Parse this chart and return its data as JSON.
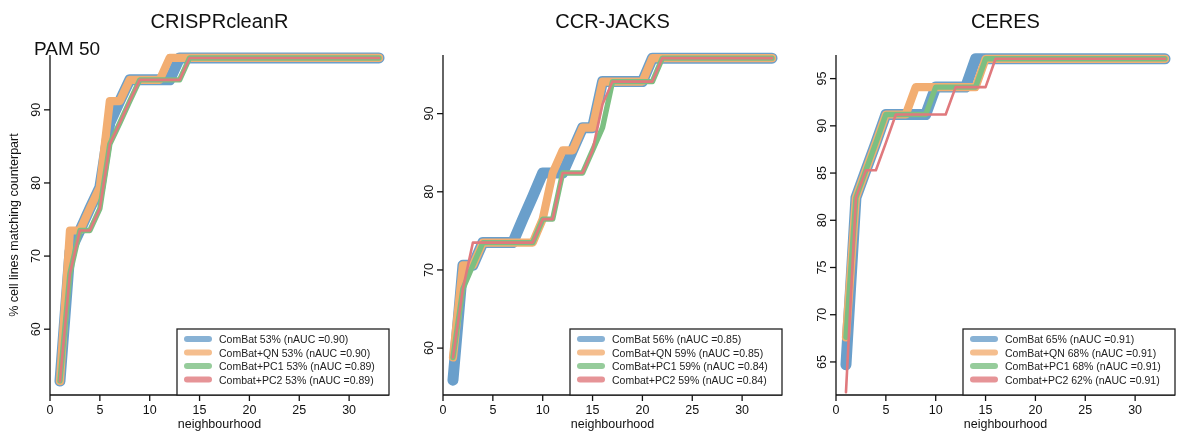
{
  "chart_data": [
    {
      "type": "line",
      "title": "CRISPRcleanR",
      "annotations": [
        "PAM 50"
      ],
      "xlabel": "neighbourhood",
      "ylabel": "% cell lines matching counterpart",
      "x": [
        1,
        2,
        3,
        4,
        5,
        6,
        7,
        8,
        9,
        10,
        11,
        12,
        13,
        14,
        15,
        16,
        17,
        18,
        19,
        20,
        21,
        22,
        23,
        24,
        25,
        26,
        27,
        28,
        29,
        30,
        31,
        32,
        33
      ],
      "xlim": [
        0,
        34
      ],
      "xticks": [
        0,
        5,
        10,
        15,
        20,
        25,
        30
      ],
      "ylim": [
        51,
        97.5
      ],
      "yticks": [
        60,
        70,
        80,
        90
      ],
      "legend": "bottom right",
      "grid": false,
      "series": [
        {
          "name": "ComBat 53% (nAUC =0.90)",
          "color": "#6a9fcb",
          "values": [
            52.9,
            70.6,
            73.5,
            76.5,
            79.4,
            88.2,
            91.2,
            94.1,
            94.1,
            94.1,
            94.1,
            94.1,
            97.1,
            97.1,
            97.1,
            97.1,
            97.1,
            97.1,
            97.1,
            97.1,
            97.1,
            97.1,
            97.1,
            97.1,
            97.1,
            97.1,
            97.1,
            97.1,
            97.1,
            97.1,
            97.1,
            97.1,
            97.1
          ]
        },
        {
          "name": "ComBat+QN 53% (nAUC =0.90)",
          "color": "#f2ae72",
          "values": [
            52.9,
            73.5,
            73.5,
            76.5,
            79.4,
            91.2,
            91.2,
            94.1,
            94.1,
            94.1,
            94.1,
            97.1,
            97.1,
            97.1,
            97.1,
            97.1,
            97.1,
            97.1,
            97.1,
            97.1,
            97.1,
            97.1,
            97.1,
            97.1,
            97.1,
            97.1,
            97.1,
            97.1,
            97.1,
            97.1,
            97.1,
            97.1,
            97.1
          ]
        },
        {
          "name": "ComBat+PC1 53% (nAUC =0.89)",
          "color": "#7cbf82",
          "values": [
            52.9,
            67.6,
            73.5,
            73.5,
            76.5,
            85.3,
            88.2,
            91.2,
            94.1,
            94.1,
            94.1,
            94.1,
            94.1,
            97.1,
            97.1,
            97.1,
            97.1,
            97.1,
            97.1,
            97.1,
            97.1,
            97.1,
            97.1,
            97.1,
            97.1,
            97.1,
            97.1,
            97.1,
            97.1,
            97.1,
            97.1,
            97.1,
            97.1
          ]
        },
        {
          "name": "Combat+PC2 53% (nAUC =0.89)",
          "color": "#e0797d",
          "values": [
            52.9,
            67.6,
            73.5,
            73.5,
            76.5,
            85.3,
            88.2,
            91.2,
            94.1,
            94.1,
            94.1,
            94.1,
            94.1,
            97.1,
            97.1,
            97.1,
            97.1,
            97.1,
            97.1,
            97.1,
            97.1,
            97.1,
            97.1,
            97.1,
            97.1,
            97.1,
            97.1,
            97.1,
            97.1,
            97.1,
            97.1,
            97.1,
            97.1
          ]
        }
      ]
    },
    {
      "type": "line",
      "title": "CCR-JACKS",
      "xlabel": "neighbourhood",
      "x": [
        1,
        2,
        3,
        4,
        5,
        6,
        7,
        8,
        9,
        10,
        11,
        12,
        13,
        14,
        15,
        16,
        17,
        18,
        19,
        20,
        21,
        22,
        23,
        24,
        25,
        26,
        27,
        28,
        29,
        30,
        31,
        32,
        33
      ],
      "xlim": [
        0,
        34
      ],
      "xticks": [
        0,
        5,
        10,
        15,
        20,
        25,
        30
      ],
      "ylim": [
        54,
        97.5
      ],
      "yticks": [
        60,
        70,
        80,
        90
      ],
      "legend": "bottom right",
      "grid": false,
      "series": [
        {
          "name": "ComBat 56% (nAUC =0.85)",
          "color": "#6a9fcb",
          "values": [
            55.9,
            70.6,
            70.6,
            73.5,
            73.5,
            73.5,
            73.5,
            76.5,
            79.4,
            82.4,
            82.4,
            82.4,
            85.3,
            88.2,
            88.2,
            94.1,
            94.1,
            94.1,
            94.1,
            94.1,
            97.1,
            97.1,
            97.1,
            97.1,
            97.1,
            97.1,
            97.1,
            97.1,
            97.1,
            97.1,
            97.1,
            97.1,
            97.1
          ]
        },
        {
          "name": "ComBat+QN 59% (nAUC =0.85)",
          "color": "#f2ae72",
          "values": [
            58.8,
            70.6,
            70.6,
            73.5,
            73.5,
            73.5,
            73.5,
            73.5,
            73.5,
            76.5,
            82.4,
            85.3,
            85.3,
            88.2,
            88.2,
            94.1,
            94.1,
            94.1,
            94.1,
            94.1,
            97.1,
            97.1,
            97.1,
            97.1,
            97.1,
            97.1,
            97.1,
            97.1,
            97.1,
            97.1,
            97.1,
            97.1,
            97.1
          ]
        },
        {
          "name": "ComBat+PC1 59% (nAUC =0.84)",
          "color": "#7cbf82",
          "values": [
            58.8,
            67.6,
            70.6,
            73.5,
            73.5,
            73.5,
            73.5,
            73.5,
            73.5,
            76.5,
            76.5,
            82.4,
            82.4,
            82.4,
            85.3,
            88.2,
            94.1,
            94.1,
            94.1,
            94.1,
            94.1,
            97.1,
            97.1,
            97.1,
            97.1,
            97.1,
            97.1,
            97.1,
            97.1,
            97.1,
            97.1,
            97.1,
            97.1
          ]
        },
        {
          "name": "Combat+PC2 59% (nAUC =0.84)",
          "color": "#e0797d",
          "values": [
            58.8,
            67.6,
            73.5,
            73.5,
            73.5,
            73.5,
            73.5,
            73.5,
            73.5,
            76.5,
            76.5,
            82.4,
            82.4,
            82.4,
            85.3,
            91.2,
            94.1,
            94.1,
            94.1,
            94.1,
            94.1,
            97.1,
            97.1,
            97.1,
            97.1,
            97.1,
            97.1,
            97.1,
            97.1,
            97.1,
            97.1,
            97.1,
            97.1
          ]
        }
      ]
    },
    {
      "type": "line",
      "title": "CERES",
      "xlabel": "neighbourhood",
      "x": [
        1,
        2,
        3,
        4,
        5,
        6,
        7,
        8,
        9,
        10,
        11,
        12,
        13,
        14,
        15,
        16,
        17,
        18,
        19,
        20,
        21,
        22,
        23,
        24,
        25,
        26,
        27,
        28,
        29,
        30,
        31,
        32,
        33
      ],
      "xlim": [
        0,
        34
      ],
      "xticks": [
        0,
        5,
        10,
        15,
        20,
        25,
        30
      ],
      "ylim": [
        61.5,
        97.5
      ],
      "yticks": [
        65,
        70,
        75,
        80,
        85,
        90,
        95
      ],
      "legend": "bottom right",
      "grid": false,
      "series": [
        {
          "name": "ComBat 65% (nAUC =0.91)",
          "color": "#6a9fcb",
          "values": [
            64.7,
            82.4,
            85.3,
            88.2,
            91.2,
            91.2,
            91.2,
            91.2,
            91.2,
            94.1,
            94.1,
            94.1,
            94.1,
            97.1,
            97.1,
            97.1,
            97.1,
            97.1,
            97.1,
            97.1,
            97.1,
            97.1,
            97.1,
            97.1,
            97.1,
            97.1,
            97.1,
            97.1,
            97.1,
            97.1,
            97.1,
            97.1,
            97.1
          ]
        },
        {
          "name": "ComBat+QN 68% (nAUC =0.91)",
          "color": "#f2ae72",
          "values": [
            67.6,
            82.4,
            85.3,
            88.2,
            91.2,
            91.2,
            91.2,
            94.1,
            94.1,
            94.1,
            94.1,
            94.1,
            94.1,
            94.1,
            97.1,
            97.1,
            97.1,
            97.1,
            97.1,
            97.1,
            97.1,
            97.1,
            97.1,
            97.1,
            97.1,
            97.1,
            97.1,
            97.1,
            97.1,
            97.1,
            97.1,
            97.1,
            97.1
          ]
        },
        {
          "name": "ComBat+PC1 68% (nAUC =0.91)",
          "color": "#7cbf82",
          "values": [
            67.6,
            82.4,
            85.3,
            88.2,
            91.2,
            91.2,
            91.2,
            91.2,
            91.2,
            94.1,
            94.1,
            94.1,
            94.1,
            94.1,
            97.1,
            97.1,
            97.1,
            97.1,
            97.1,
            97.1,
            97.1,
            97.1,
            97.1,
            97.1,
            97.1,
            97.1,
            97.1,
            97.1,
            97.1,
            97.1,
            97.1,
            97.1,
            97.1
          ]
        },
        {
          "name": "Combat+PC2 62% (nAUC =0.91)",
          "color": "#e0797d",
          "values": [
            61.8,
            82.4,
            85.3,
            85.3,
            88.2,
            91.2,
            91.2,
            91.2,
            91.2,
            91.2,
            91.2,
            94.1,
            94.1,
            94.1,
            94.1,
            97.1,
            97.1,
            97.1,
            97.1,
            97.1,
            97.1,
            97.1,
            97.1,
            97.1,
            97.1,
            97.1,
            97.1,
            97.1,
            97.1,
            97.1,
            97.1,
            97.1,
            97.1
          ]
        }
      ]
    }
  ]
}
